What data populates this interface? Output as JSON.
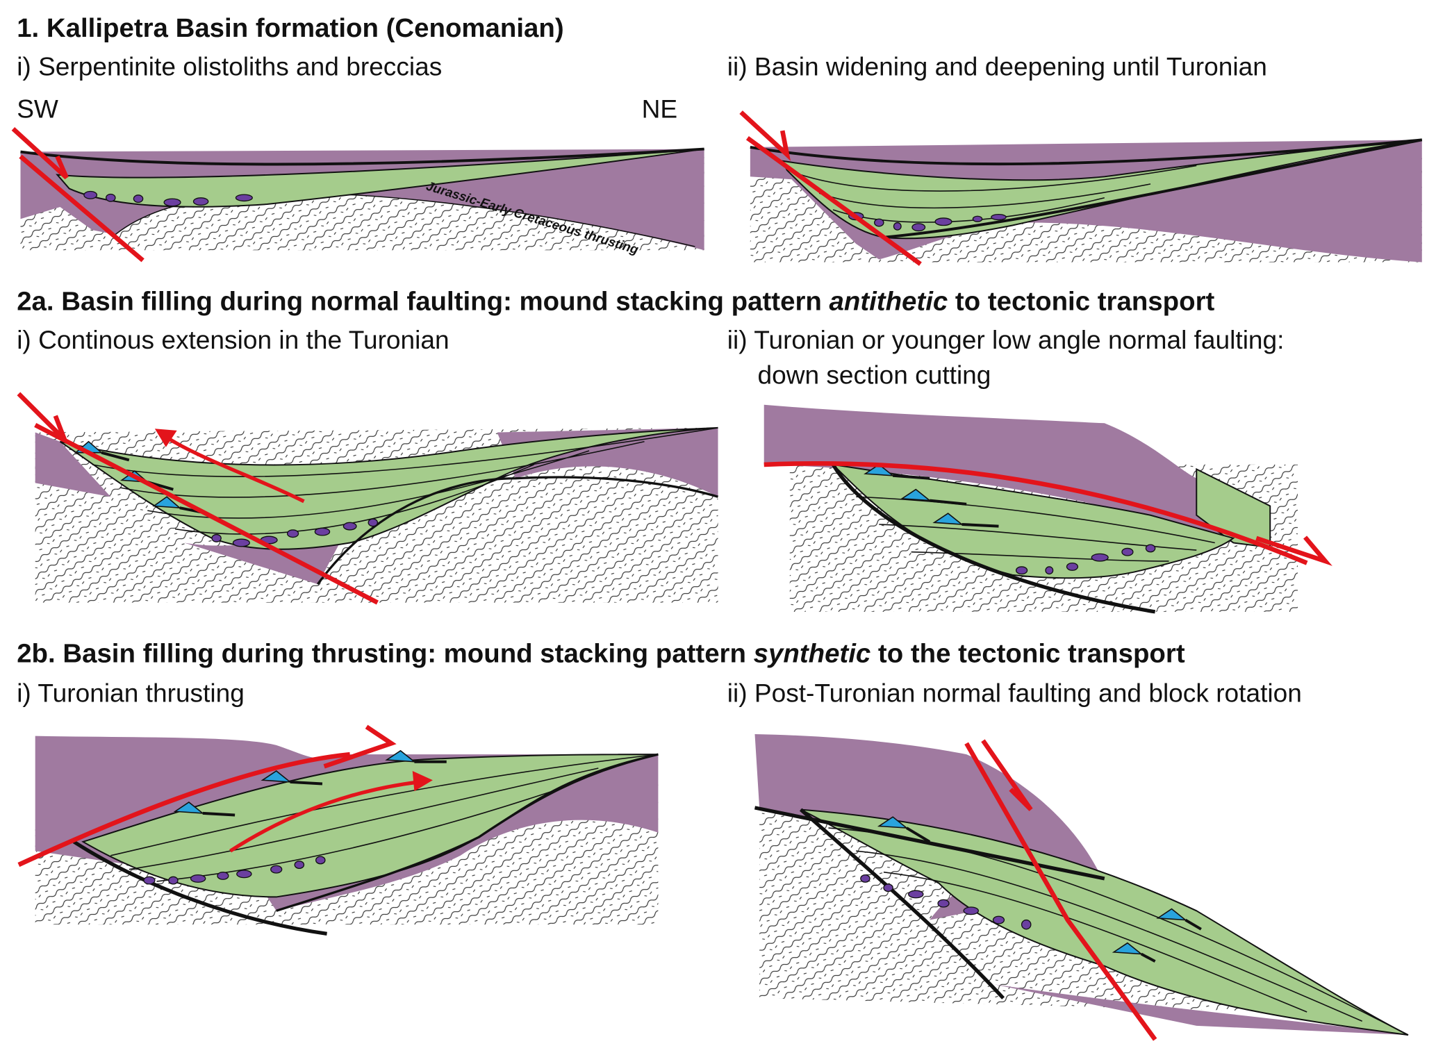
{
  "sections": [
    {
      "title": "1. Kallipetra Basin formation (Cenomanian)",
      "panels": [
        {
          "title": "i) Serpentinite olistoliths and breccias",
          "labels": {
            "left": "SW",
            "right": "NE",
            "contact": "Jurassic-Early Cretaceous thrusting"
          }
        },
        {
          "title": "ii) Basin widening and deepening until Turonian"
        }
      ]
    },
    {
      "title_parts": [
        "2a. Basin filling during normal faulting: mound stacking pattern ",
        "antithetic",
        " to tectonic transport"
      ],
      "panels": [
        {
          "title": "i) Continous extension in the Turonian"
        },
        {
          "title_lines": [
            "ii) Turonian or younger low angle normal faulting:",
            "down section cutting"
          ]
        }
      ]
    },
    {
      "title_parts": [
        "2b. Basin filling during thrusting: mound stacking pattern ",
        "synthetic",
        " to the tectonic transport"
      ],
      "panels": [
        {
          "title": "i) Turonian thrusting"
        },
        {
          "title": "ii) Post-Turonian normal faulting and block rotation"
        }
      ]
    }
  ]
}
